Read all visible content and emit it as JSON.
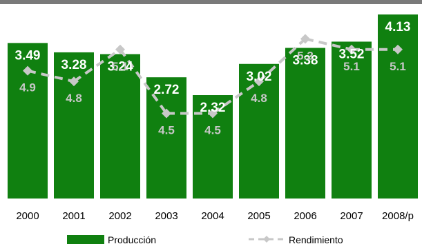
{
  "chart_data": {
    "type": "bar",
    "categories": [
      "2000",
      "2001",
      "2002",
      "2003",
      "2004",
      "2005",
      "2006",
      "2007",
      "2008/p"
    ],
    "series": [
      {
        "name": "Producción",
        "type": "bar",
        "values": [
          3.49,
          3.28,
          3.24,
          2.72,
          2.32,
          3.02,
          3.38,
          3.52,
          4.13
        ]
      },
      {
        "name": "Rendimiento",
        "type": "line",
        "values": [
          4.9,
          4.8,
          5.1,
          4.5,
          4.5,
          4.8,
          5.2,
          5.1,
          5.1
        ]
      }
    ],
    "bar_labels": [
      "3.49",
      "3.28",
      "3.24",
      "2.72",
      "2.32",
      "3.02",
      "3.38",
      "3.52",
      "4.13"
    ],
    "line_labels": [
      "4.9",
      "4.8",
      "5.1",
      "4.5",
      "4.5",
      "4.8",
      "5.2",
      "5.1",
      "5.1"
    ],
    "title": "",
    "xlabel": "",
    "ylabel": "",
    "ylim": [
      0,
      4.3
    ],
    "y2lim": [
      3.7,
      5.5
    ],
    "grid": false,
    "legend_position": "bottom",
    "colors": {
      "bar": "#108010",
      "line": "#c8c8c8",
      "header": "#7a7a7a"
    }
  }
}
